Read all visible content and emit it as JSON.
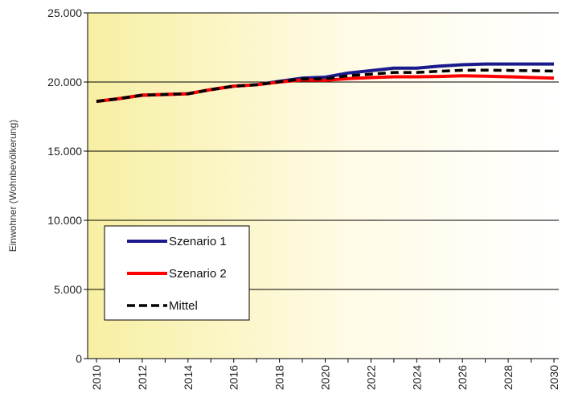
{
  "chart_data": {
    "type": "line",
    "title": "",
    "xlabel": "",
    "ylabel": "Einwohner (Wohnbevölkerung)",
    "x": [
      2010,
      2011,
      2012,
      2013,
      2014,
      2015,
      2016,
      2017,
      2018,
      2019,
      2020,
      2021,
      2022,
      2023,
      2024,
      2025,
      2026,
      2027,
      2028,
      2029,
      2030
    ],
    "xticks": [
      "2010",
      "2012",
      "2014",
      "2016",
      "2018",
      "2020",
      "2022",
      "2024",
      "2026",
      "2028",
      "2030"
    ],
    "ylim": [
      0,
      25000
    ],
    "yticks": [
      {
        "value": 0,
        "label": "0"
      },
      {
        "value": 5000,
        "label": "5.000"
      },
      {
        "value": 10000,
        "label": "10.000"
      },
      {
        "value": 15000,
        "label": "15.000"
      },
      {
        "value": 20000,
        "label": "20.000"
      },
      {
        "value": 25000,
        "label": "25.000"
      }
    ],
    "grid": true,
    "legend_position": "bottom-left",
    "series": [
      {
        "name": "Szenario 1",
        "color": "#1a1a8c",
        "style": "solid",
        "values": [
          18600,
          18800,
          19050,
          19100,
          19150,
          19450,
          19700,
          19800,
          20050,
          20280,
          20350,
          20650,
          20820,
          21000,
          21000,
          21150,
          21250,
          21300,
          21300,
          21300,
          21300
        ]
      },
      {
        "name": "Szenario 2",
        "color": "#ff0000",
        "style": "solid",
        "values": [
          18600,
          18800,
          19050,
          19100,
          19150,
          19450,
          19700,
          19800,
          20000,
          20150,
          20120,
          20250,
          20320,
          20380,
          20380,
          20400,
          20450,
          20420,
          20380,
          20330,
          20280
        ]
      },
      {
        "name": "Mittel",
        "color": "#000000",
        "style": "dashed",
        "values": [
          18600,
          18800,
          19050,
          19100,
          19150,
          19450,
          19700,
          19800,
          20020,
          20220,
          20230,
          20450,
          20570,
          20690,
          20690,
          20780,
          20850,
          20860,
          20840,
          20820,
          20790
        ]
      }
    ]
  }
}
